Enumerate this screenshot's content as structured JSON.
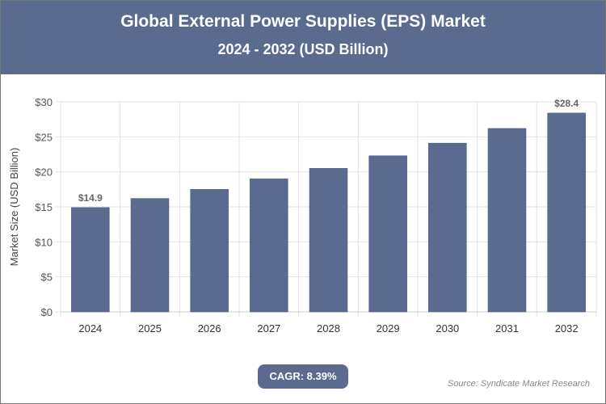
{
  "header": {
    "title": "Global External Power Supplies (EPS) Market",
    "subtitle": "2024 - 2032 (USD Billion)"
  },
  "chart_data": {
    "type": "bar",
    "title": "Global External Power Supplies (EPS) Market",
    "subtitle": "2024 - 2032 (USD Billion)",
    "categories": [
      "2024",
      "2025",
      "2026",
      "2027",
      "2028",
      "2029",
      "2030",
      "2031",
      "2032"
    ],
    "values": [
      14.9,
      16.2,
      17.5,
      19.0,
      20.5,
      22.3,
      24.1,
      26.2,
      28.4
    ],
    "data_labels": {
      "0": "$14.9",
      "8": "$28.4"
    },
    "xlabel": "",
    "ylabel": "Market Size (USD Billion)",
    "ylim": [
      0,
      30
    ],
    "yticks": [
      0,
      5,
      10,
      15,
      20,
      25,
      30
    ],
    "ytick_labels": [
      "$0",
      "$5",
      "$10",
      "$15",
      "$20",
      "$25",
      "$30"
    ],
    "grid": true,
    "bar_color": "#5b6a8f"
  },
  "footer": {
    "cagr": "CAGR: 8.39%",
    "source": "Source: Syndicate Market Research"
  }
}
